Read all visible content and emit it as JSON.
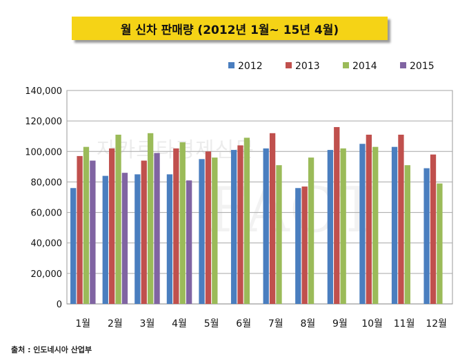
{
  "chart_data": {
    "type": "bar",
    "title": "월 신차 판매량 (2012년 1월~ 15년 4월)",
    "source": "출처 : 인도네시아 산업부",
    "watermark": "자카르타경제신문",
    "categories": [
      "1월",
      "2월",
      "3월",
      "4월",
      "5월",
      "6월",
      "7월",
      "8월",
      "9월",
      "10월",
      "11월",
      "12월"
    ],
    "series": [
      {
        "name": "2012",
        "color": "#4a7ebf",
        "values": [
          76000,
          84000,
          85000,
          85000,
          95000,
          101000,
          102000,
          76000,
          101000,
          105000,
          103000,
          89000
        ]
      },
      {
        "name": "2013",
        "color": "#c0504d",
        "values": [
          97000,
          102000,
          94000,
          102000,
          100000,
          104000,
          112000,
          77000,
          116000,
          111000,
          111000,
          98000
        ]
      },
      {
        "name": "2014",
        "color": "#9bbb59",
        "values": [
          103000,
          111000,
          112000,
          106000,
          96000,
          109000,
          91000,
          96000,
          102000,
          103000,
          91000,
          79000
        ]
      },
      {
        "name": "2015",
        "color": "#8064a2",
        "values": [
          94000,
          86000,
          99000,
          81000,
          null,
          null,
          null,
          null,
          null,
          null,
          null,
          null
        ]
      }
    ],
    "ylim": [
      0,
      140000
    ],
    "yticks": [
      0,
      20000,
      40000,
      60000,
      80000,
      100000,
      120000,
      140000
    ],
    "ytick_labels": [
      "0",
      "20,000",
      "40,000",
      "60,000",
      "80,000",
      "100,000",
      "120,000",
      "140,000"
    ],
    "grid": true,
    "legend": "top-right"
  }
}
